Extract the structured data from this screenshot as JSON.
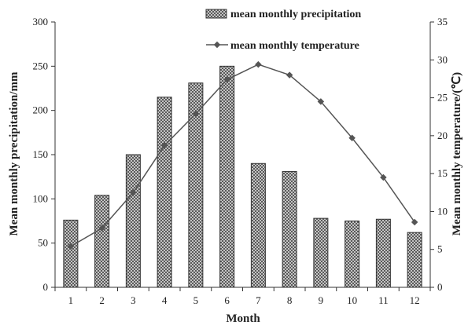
{
  "chart_data": {
    "type": "bar",
    "categories": [
      "1",
      "2",
      "3",
      "4",
      "5",
      "6",
      "7",
      "8",
      "9",
      "10",
      "11",
      "12"
    ],
    "series": [
      {
        "name": "mean monthly precipitation",
        "type": "bar",
        "axis": "left",
        "values": [
          76,
          104,
          150,
          215,
          231,
          250,
          140,
          131,
          78,
          75,
          77,
          62
        ]
      },
      {
        "name": "mean monthly temperature",
        "type": "line",
        "axis": "right",
        "values": [
          5.4,
          7.8,
          12.5,
          18.7,
          22.9,
          27.4,
          29.4,
          28.0,
          24.5,
          19.7,
          14.5,
          8.6
        ]
      }
    ],
    "xlabel": "Month",
    "ylabel": "Mean  monthly precipitation/mm",
    "y2label": "Mean monthly temperature/(℃)",
    "ylim": [
      0,
      300
    ],
    "y2lim": [
      0,
      35
    ],
    "yticks": [
      0,
      50,
      100,
      150,
      200,
      250,
      300
    ],
    "y2ticks": [
      0,
      5,
      10,
      15,
      20,
      25,
      30,
      35
    ],
    "legend": "top",
    "grid": false,
    "colors": {
      "bar_fill": "#9a9a9a",
      "bar_stroke": "#333333",
      "line": "#555555",
      "axis": "#333333"
    }
  }
}
